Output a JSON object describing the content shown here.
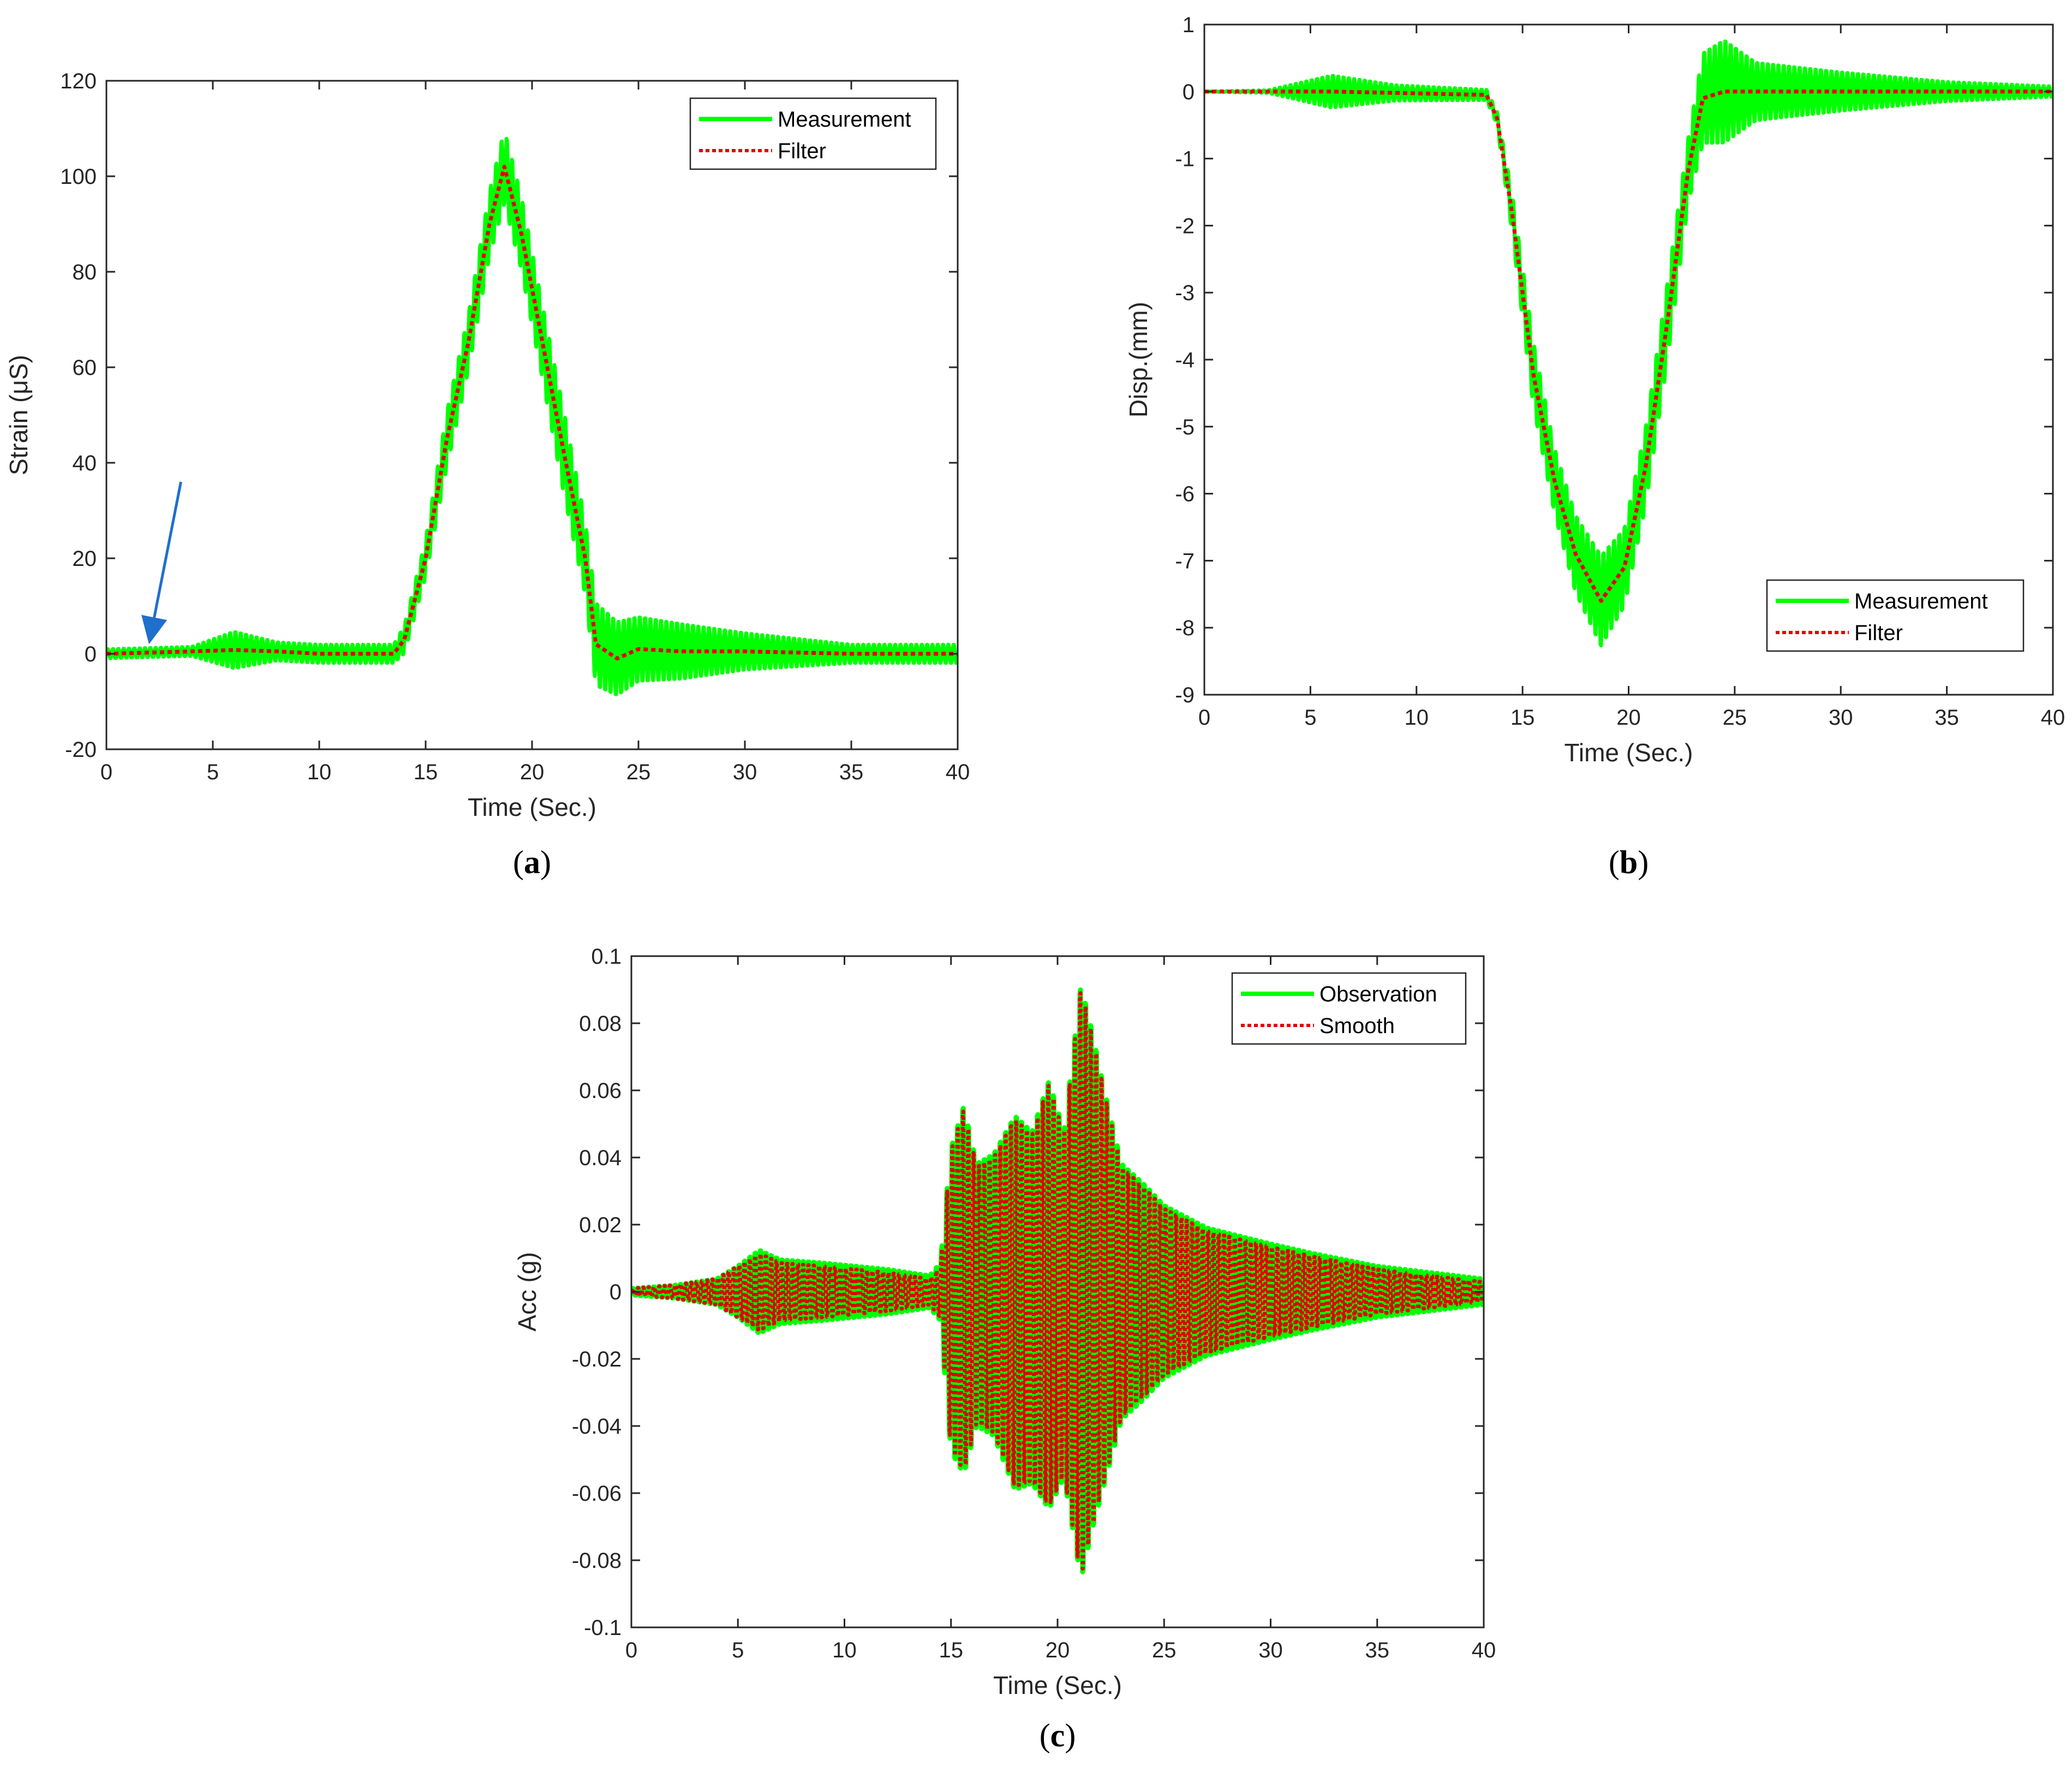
{
  "chart_data": [
    {
      "id": "a",
      "type": "line",
      "panel_label": "a",
      "xlabel": "Time (Sec.)",
      "ylabel": "Strain (μS)",
      "xlim": [
        0,
        40
      ],
      "ylim": [
        -20,
        120
      ],
      "xticks": [
        0,
        5,
        10,
        15,
        20,
        25,
        30,
        35,
        40
      ],
      "yticks": [
        -20,
        0,
        20,
        40,
        60,
        80,
        100,
        120
      ],
      "legend_position": "top-right",
      "legend": [
        "Measurement",
        "Filter"
      ],
      "colors": {
        "measurement": "#00ff00",
        "filter": "#e00000",
        "arrow": "#1f6fcc"
      },
      "annotation": {
        "type": "arrow",
        "from": [
          3.5,
          36
        ],
        "to": [
          2,
          2
        ]
      },
      "series": [
        {
          "name": "Measurement",
          "style": "solid",
          "x": [
            0,
            4,
            6,
            8,
            10,
            13.5,
            14,
            15,
            16,
            17,
            18,
            18.7,
            19.5,
            20.5,
            21.5,
            22.5,
            23,
            24,
            25,
            27,
            30,
            35,
            40
          ],
          "y": [
            0,
            0.5,
            0.8,
            0.5,
            0,
            0,
            3,
            20,
            45,
            65,
            90,
            102,
            88,
            65,
            42,
            20,
            2,
            -1,
            1,
            0.5,
            0.5,
            0,
            0
          ],
          "amplitude": [
            1,
            1,
            4,
            2,
            2,
            2,
            3,
            4,
            6,
            6,
            7,
            8,
            8,
            8,
            9,
            8,
            9,
            8,
            7,
            6,
            4,
            2,
            2
          ]
        },
        {
          "name": "Filter",
          "style": "dotted",
          "x": [
            0,
            4,
            6,
            8,
            10,
            13.5,
            14,
            15,
            16,
            17,
            18,
            18.7,
            19.5,
            20.5,
            21.5,
            22.5,
            23,
            24,
            25,
            27,
            30,
            35,
            40
          ],
          "y": [
            0,
            0.5,
            0.8,
            0.5,
            0,
            0,
            3,
            20,
            45,
            65,
            90,
            102,
            88,
            65,
            42,
            20,
            2,
            -1,
            1,
            0.5,
            0.5,
            0,
            0
          ]
        }
      ]
    },
    {
      "id": "b",
      "type": "line",
      "panel_label": "b",
      "xlabel": "Time (Sec.)",
      "ylabel": "Disp.(mm)",
      "xlim": [
        0,
        40
      ],
      "ylim": [
        -9,
        1
      ],
      "xticks": [
        0,
        5,
        10,
        15,
        20,
        25,
        30,
        35,
        40
      ],
      "yticks": [
        -9,
        -8,
        -7,
        -6,
        -5,
        -4,
        -3,
        -2,
        -1,
        0,
        1
      ],
      "legend_position": "bottom-right",
      "legend": [
        "Measurement",
        "Filter"
      ],
      "colors": {
        "measurement": "#00ff00",
        "filter": "#e00000"
      },
      "series": [
        {
          "name": "Measurement",
          "style": "solid",
          "x": [
            0,
            3,
            6,
            9,
            13.3,
            13.8,
            14.5,
            15.5,
            16.5,
            17.5,
            18.7,
            19.8,
            20.8,
            21.8,
            22.8,
            23.5,
            24.5,
            26,
            30,
            35,
            40
          ],
          "y": [
            0,
            0,
            0,
            -0.02,
            -0.05,
            -0.4,
            -1.8,
            -4.2,
            -5.8,
            -6.9,
            -7.6,
            -7.1,
            -5.6,
            -3.5,
            -1.2,
            -0.1,
            0,
            0,
            0,
            0,
            0
          ],
          "amplitude": [
            0,
            0.02,
            0.25,
            0.12,
            0.08,
            0.1,
            0.3,
            0.5,
            0.5,
            0.6,
            0.7,
            0.6,
            0.6,
            0.6,
            0.5,
            0.7,
            0.8,
            0.45,
            0.3,
            0.15,
            0.08
          ]
        },
        {
          "name": "Filter",
          "style": "dotted",
          "x": [
            0,
            3,
            6,
            9,
            13.3,
            13.8,
            14.5,
            15.5,
            16.5,
            17.5,
            18.7,
            19.8,
            20.8,
            21.8,
            22.8,
            23.5,
            24.5,
            26,
            30,
            35,
            40
          ],
          "y": [
            0,
            0,
            0,
            -0.02,
            -0.05,
            -0.4,
            -1.8,
            -4.2,
            -5.8,
            -6.9,
            -7.6,
            -7.1,
            -5.6,
            -3.5,
            -1.2,
            -0.1,
            0,
            0,
            0,
            0,
            0
          ]
        }
      ]
    },
    {
      "id": "c",
      "type": "line",
      "panel_label": "c",
      "xlabel": "Time (Sec.)",
      "ylabel": "Acc (g)",
      "xlim": [
        0,
        40
      ],
      "ylim": [
        -0.1,
        0.1
      ],
      "xticks": [
        0,
        5,
        10,
        15,
        20,
        25,
        30,
        35,
        40
      ],
      "yticks": [
        -0.1,
        -0.08,
        -0.06,
        -0.04,
        -0.02,
        0,
        0.02,
        0.04,
        0.06,
        0.08,
        0.1
      ],
      "ytick_labels": [
        "-0.1",
        "-0.08",
        "-0.06",
        "-0.04",
        "-0.02",
        "0",
        "0.02",
        "0.04",
        "0.06",
        "0.08",
        "0.1"
      ],
      "legend_position": "top-right",
      "legend": [
        "Observation",
        "Smooth"
      ],
      "colors": {
        "observation": "#00ff00",
        "smooth": "#e00000"
      },
      "series": [
        {
          "name": "Observation",
          "style": "solid",
          "envelope_x": [
            0,
            2,
            4,
            5,
            6,
            7,
            9,
            12,
            14,
            14.5,
            15,
            15.6,
            16.2,
            17,
            18,
            18.8,
            19.6,
            20.3,
            21.1,
            21.6,
            22.2,
            23,
            24,
            25,
            27,
            30,
            32,
            35,
            40
          ],
          "envelope_upper": [
            0.001,
            0.002,
            0.004,
            0.008,
            0.013,
            0.01,
            0.009,
            0.007,
            0.005,
            0.009,
            0.045,
            0.058,
            0.04,
            0.043,
            0.055,
            0.05,
            0.066,
            0.05,
            0.096,
            0.082,
            0.063,
            0.04,
            0.034,
            0.027,
            0.02,
            0.015,
            0.012,
            0.008,
            0.004
          ],
          "envelope_lower": [
            -0.001,
            -0.002,
            -0.004,
            -0.008,
            -0.013,
            -0.01,
            -0.009,
            -0.007,
            -0.005,
            -0.009,
            -0.05,
            -0.057,
            -0.042,
            -0.045,
            -0.062,
            -0.06,
            -0.068,
            -0.058,
            -0.09,
            -0.075,
            -0.06,
            -0.04,
            -0.034,
            -0.027,
            -0.02,
            -0.015,
            -0.012,
            -0.008,
            -0.004
          ]
        },
        {
          "name": "Smooth",
          "style": "dotted",
          "envelope_x": [
            0,
            2,
            4,
            5,
            6,
            7,
            9,
            12,
            14,
            14.5,
            15,
            15.6,
            16.2,
            17,
            18,
            18.8,
            19.6,
            20.3,
            21.1,
            21.6,
            22.2,
            23,
            24,
            25,
            27,
            30,
            32,
            35,
            40
          ],
          "envelope_upper": [
            0.001,
            0.002,
            0.004,
            0.008,
            0.012,
            0.009,
            0.008,
            0.006,
            0.004,
            0.008,
            0.044,
            0.057,
            0.039,
            0.042,
            0.054,
            0.049,
            0.065,
            0.049,
            0.095,
            0.081,
            0.062,
            0.039,
            0.033,
            0.026,
            0.019,
            0.014,
            0.011,
            0.007,
            0.003
          ],
          "envelope_lower": [
            -0.001,
            -0.002,
            -0.004,
            -0.008,
            -0.012,
            -0.009,
            -0.008,
            -0.006,
            -0.004,
            -0.008,
            -0.049,
            -0.056,
            -0.041,
            -0.044,
            -0.061,
            -0.059,
            -0.067,
            -0.057,
            -0.089,
            -0.074,
            -0.059,
            -0.039,
            -0.033,
            -0.026,
            -0.019,
            -0.014,
            -0.011,
            -0.007,
            -0.003
          ]
        }
      ]
    }
  ]
}
